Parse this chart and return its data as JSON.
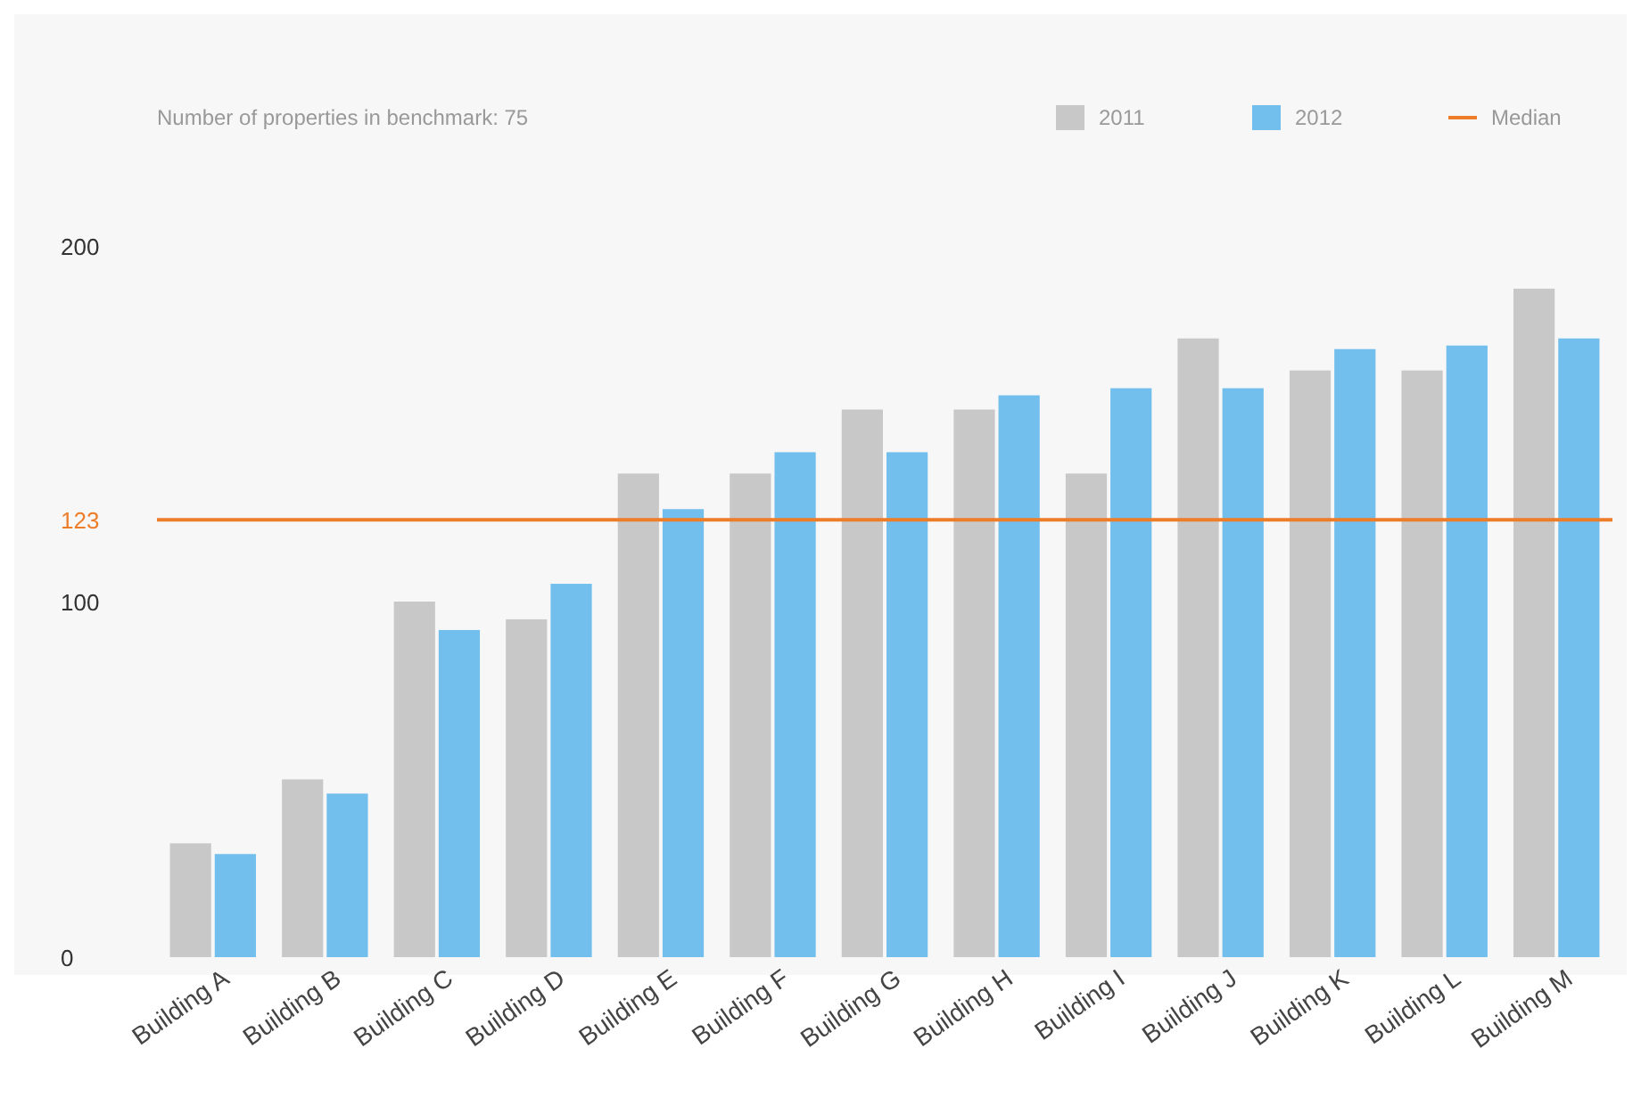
{
  "chart_data": {
    "type": "bar",
    "categories": [
      "Building A",
      "Building B",
      "Building C",
      "Building D",
      "Building E",
      "Building F",
      "Building G",
      "Building H",
      "Building I",
      "Building J",
      "Building K",
      "Building L",
      "Building M"
    ],
    "series": [
      {
        "name": "2011",
        "color": "#c8c8c8",
        "values": [
          32,
          50,
          100,
          95,
          136,
          136,
          154,
          154,
          136,
          174,
          165,
          165,
          188
        ]
      },
      {
        "name": "2012",
        "color": "#72bfee",
        "values": [
          29,
          46,
          92,
          105,
          126,
          142,
          142,
          158,
          160,
          160,
          171,
          172,
          174
        ]
      }
    ],
    "ylim": [
      0,
      200
    ],
    "yticks": [
      0,
      100,
      123,
      200
    ],
    "ref_lines": [
      {
        "axis": "y",
        "value": 123,
        "label": "Median",
        "color": "#ee7d2a"
      }
    ],
    "annotations": [
      "Number of properties in benchmark: 75"
    ],
    "legend": "top right",
    "grid": false
  }
}
